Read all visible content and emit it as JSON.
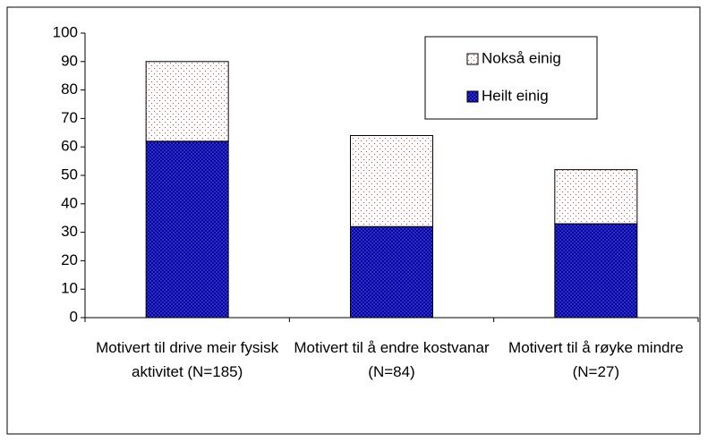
{
  "chart_data": {
    "type": "stacked_bar",
    "categories": [
      "Motivert til drive meir fysisk aktivitet (N=185)",
      "Motivert til å endre kostvanar (N=84)",
      "Motivert til å røyke mindre (N=27)"
    ],
    "series": [
      {
        "name": "Heilt einig",
        "color": "#3333ff",
        "values": [
          62,
          32,
          33
        ]
      },
      {
        "name": "Nokså einig",
        "color": "#ff3333",
        "values": [
          28,
          32,
          19
        ]
      }
    ],
    "ylim": [
      0,
      100
    ],
    "yticks": [
      0,
      10,
      20,
      30,
      40,
      50,
      60,
      70,
      80,
      90,
      100
    ],
    "grid": false,
    "legend": "top-right"
  }
}
